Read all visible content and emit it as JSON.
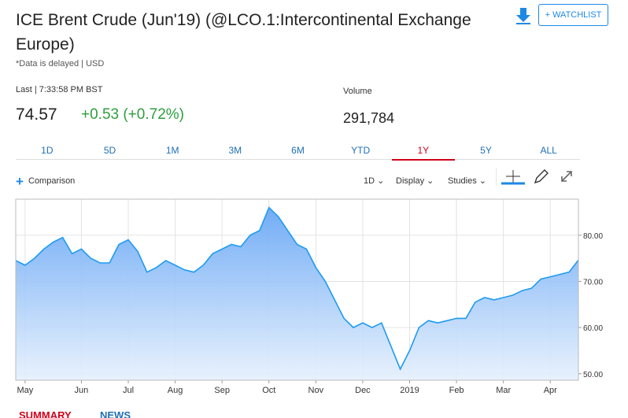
{
  "header": {
    "title": "ICE Brent Crude (Jun'19) (@LCO.1:Intercontinental Exchange Europe)",
    "delayed": "*Data is delayed | USD",
    "watchlist": "+ WATCHLIST",
    "last_label": "Last | 7:33:58 PM BST",
    "last": "74.57",
    "change": "+0.53 (+0.72%)",
    "volume_label": "Volume",
    "volume": "291,784"
  },
  "tabs": [
    "1D",
    "5D",
    "1M",
    "3M",
    "6M",
    "YTD",
    "1Y",
    "5Y",
    "ALL"
  ],
  "active_tab": "1Y",
  "toolbar": {
    "comparison": "Comparison",
    "interval": "1D",
    "display": "Display",
    "studies": "Studies"
  },
  "bottom_tabs": [
    "SUMMARY",
    "NEWS"
  ],
  "chart_data": {
    "type": "area",
    "color": "#1e9bef",
    "categories": [
      null,
      "May",
      null,
      null,
      null,
      null,
      null,
      "Jun",
      null,
      null,
      null,
      null,
      "Jul",
      null,
      null,
      null,
      null,
      "Aug",
      null,
      null,
      null,
      null,
      "Sep",
      null,
      null,
      null,
      null,
      "Oct",
      null,
      null,
      null,
      null,
      "Nov",
      null,
      null,
      null,
      null,
      "Dec",
      null,
      null,
      null,
      null,
      "2019",
      null,
      null,
      null,
      null,
      "Feb",
      null,
      null,
      null,
      null,
      "Mar",
      null,
      null,
      null,
      null,
      "Apr",
      null,
      null,
      null
    ],
    "values": [
      74.5,
      73.5,
      75,
      77,
      78.5,
      79.5,
      76,
      77,
      75,
      74,
      74,
      78,
      79,
      76.5,
      72,
      73,
      74.5,
      73.5,
      72.5,
      72,
      73.5,
      76,
      77,
      78,
      77.5,
      80,
      81,
      86,
      84,
      81,
      78,
      77,
      73,
      70,
      66,
      62,
      60,
      61,
      60,
      61,
      56,
      51,
      55,
      60,
      61.5,
      61,
      61.5,
      62,
      62,
      65.5,
      66.5,
      66,
      66.5,
      67,
      68,
      68.5,
      70.5,
      71,
      71.5,
      72,
      74.6
    ],
    "ylim": [
      48.6,
      87.8
    ],
    "yticks": [
      {
        "value": 50,
        "label": "50.00"
      },
      {
        "value": 60,
        "label": "60.00"
      },
      {
        "value": 70,
        "label": "70.00"
      },
      {
        "value": 80,
        "label": "80.00"
      }
    ],
    "grid": true
  }
}
